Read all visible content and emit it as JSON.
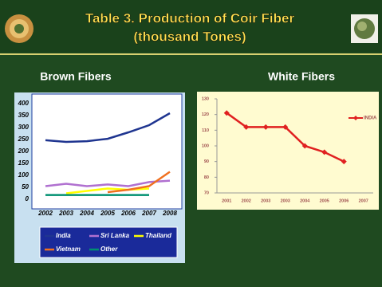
{
  "title": [
    "Table 3. Production of Coir Fiber",
    "(thousand Tones)"
  ],
  "chart_data": [
    {
      "type": "line",
      "title": "Brown Fibers",
      "categories": [
        "2002",
        "2003",
        "2004",
        "2005",
        "2006",
        "2007",
        "2008"
      ],
      "series": [
        {
          "name": "India",
          "color": "#1f3590",
          "values": [
            247,
            240,
            243,
            253,
            280,
            310,
            360
          ]
        },
        {
          "name": "Sri Lanka",
          "color": "#b070d0",
          "values": [
            55,
            65,
            55,
            62,
            55,
            72,
            78
          ]
        },
        {
          "name": "Thailand",
          "color": "#ffff00",
          "values": [
            null,
            25,
            35,
            45,
            40,
            45,
            null
          ]
        },
        {
          "name": "Vietnam",
          "color": "#f07020",
          "values": [
            null,
            null,
            null,
            30,
            40,
            55,
            115
          ]
        },
        {
          "name": "Other",
          "color": "#009070",
          "values": [
            18,
            18,
            18,
            18,
            18,
            18,
            null
          ]
        }
      ],
      "ylim": [
        0,
        400
      ],
      "yticks": [
        0,
        50,
        100,
        150,
        200,
        250,
        300,
        350,
        400
      ],
      "markers": false,
      "legend": "bottom"
    },
    {
      "type": "line",
      "title": "White Fibers",
      "categories": [
        "2001",
        "2002",
        "2003",
        "2003",
        "2004",
        "2005",
        "2006",
        "2007"
      ],
      "series": [
        {
          "name": "INDIA",
          "color": "#e02020",
          "values": [
            121,
            112,
            112,
            112,
            100,
            96,
            90,
            null
          ]
        }
      ],
      "ylim": [
        70,
        130
      ],
      "yticks": [
        70,
        80,
        90,
        100,
        110,
        120,
        130
      ],
      "markers": true,
      "legend": "right"
    }
  ]
}
